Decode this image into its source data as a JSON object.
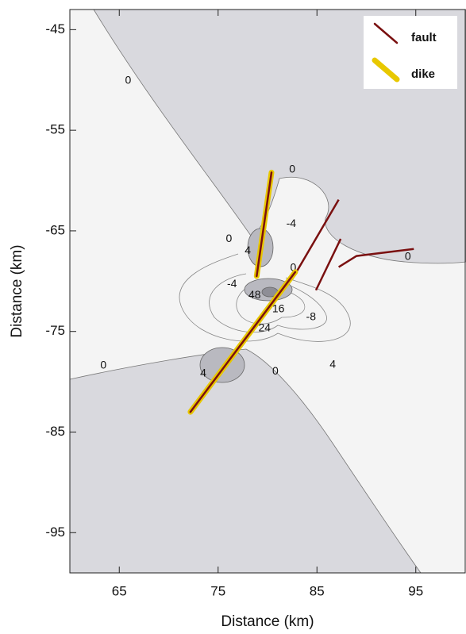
{
  "chart_data": {
    "type": "map-lines",
    "x_label": "Distance (km)",
    "y_label": "Distance (km)",
    "xlim": [
      60,
      100
    ],
    "ylim": [
      -99,
      -43
    ],
    "xticks": [
      65,
      75,
      85,
      95
    ],
    "yticks": [
      -45,
      -55,
      -65,
      -75,
      -85,
      -95
    ],
    "series": [
      {
        "name": "fault",
        "color": "#7a1010",
        "x": [
          87.2,
          82.5,
          null,
          87.4,
          84.9,
          null,
          87.2,
          89.0,
          94.8
        ],
        "y": [
          -61.9,
          -69.8,
          null,
          -65.8,
          -70.9,
          null,
          -68.6,
          -67.5,
          -66.8
        ]
      },
      {
        "name": "dike",
        "color": "#e8c800",
        "inner_color": "#7a1010",
        "x": [
          80.4,
          78.9,
          null,
          82.8,
          72.2
        ],
        "y": [
          -59.2,
          -69.5,
          null,
          -69.1,
          -83.0
        ]
      }
    ],
    "contour_labels": [
      {
        "x": 65.9,
        "y": -50.1,
        "level": 0
      },
      {
        "x": 82.5,
        "y": -58.9,
        "level": 0
      },
      {
        "x": 82.4,
        "y": -64.3,
        "level": -4
      },
      {
        "x": 76.1,
        "y": -65.8,
        "level": 0
      },
      {
        "x": 78.0,
        "y": -67.0,
        "level": 4
      },
      {
        "x": 82.6,
        "y": -68.7,
        "level": 0
      },
      {
        "x": 76.4,
        "y": -70.3,
        "level": -4
      },
      {
        "x": 78.7,
        "y": -71.4,
        "level": 48
      },
      {
        "x": 81.1,
        "y": -72.8,
        "level": 16
      },
      {
        "x": 84.4,
        "y": -73.6,
        "level": -8
      },
      {
        "x": 79.7,
        "y": -74.7,
        "level": 24
      },
      {
        "x": 63.4,
        "y": -78.4,
        "level": 0
      },
      {
        "x": 73.5,
        "y": -79.2,
        "level": 4
      },
      {
        "x": 80.8,
        "y": -79.0,
        "level": 0
      },
      {
        "x": 86.6,
        "y": -78.3,
        "level": 4
      },
      {
        "x": 94.2,
        "y": -67.6,
        "level": 0
      }
    ]
  }
}
